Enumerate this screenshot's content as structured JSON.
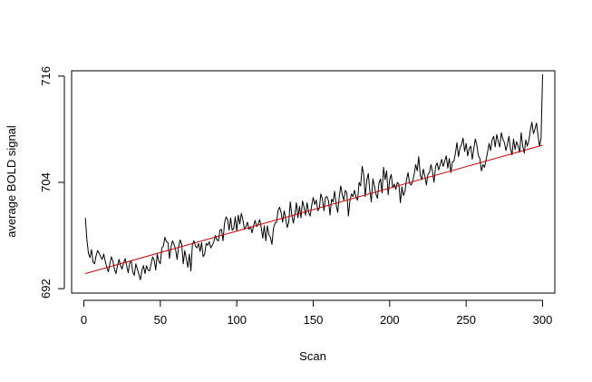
{
  "chart_data": {
    "type": "line",
    "title": "",
    "xlabel": "Scan",
    "ylabel": "average BOLD signal",
    "xlim": [
      -8,
      308
    ],
    "ylim": [
      691.5,
      716.6
    ],
    "xticks": [
      0,
      50,
      100,
      150,
      200,
      250,
      300
    ],
    "yticks": [
      692,
      704,
      716
    ],
    "grid": false,
    "legend": "none",
    "series": [
      {
        "color": "#000000",
        "style": "signal",
        "n_points": 300,
        "x_start": 1,
        "x_end": 300,
        "values": [
          700.0,
          697.5,
          696.0,
          695.5,
          696.4,
          695.0,
          694.8,
          695.7,
          696.3,
          696.0,
          695.6,
          695.3,
          695.9,
          695.1,
          694.4,
          693.9,
          694.8,
          695.6,
          695.1,
          694.2,
          693.7,
          694.6,
          695.3,
          694.6,
          694.2,
          694.9,
          695.4,
          694.6,
          693.8,
          694.9,
          695.1,
          693.9,
          693.5,
          694.8,
          694.2,
          693.6,
          693.0,
          694.1,
          694.6,
          693.7,
          694.6,
          694.1,
          694.0,
          694.8,
          695.6,
          695.2,
          694.1,
          695.9,
          695.1,
          694.8,
          696.6,
          696.8,
          697.8,
          697.3,
          697.2,
          695.4,
          696.7,
          697.4,
          697.0,
          696.4,
          695.3,
          696.8,
          697.5,
          697.0,
          694.8,
          696.3,
          695.4,
          694.4,
          695.9,
          694.0,
          697.0,
          697.4,
          696.8,
          696.6,
          697.1,
          696.2,
          697.2,
          695.6,
          695.9,
          697.1,
          696.9,
          697.3,
          696.6,
          696.9,
          697.3,
          698.0,
          697.5,
          697.4,
          698.6,
          698.7,
          697.4,
          699.4,
          700.1,
          699.8,
          698.6,
          700.0,
          698.6,
          698.8,
          700.1,
          698.5,
          700.3,
          699.3,
          700.5,
          699.8,
          698.7,
          699.0,
          699.5,
          698.7,
          699.0,
          698.3,
          699.1,
          699.7,
          699.0,
          699.3,
          699.8,
          698.9,
          697.7,
          699.1,
          697.4,
          699.1,
          698.1,
          697.8,
          697.0,
          698.8,
          699.4,
          699.5,
          700.8,
          701.2,
          700.6,
          699.5,
          700.8,
          699.9,
          698.9,
          699.5,
          701.8,
          700.3,
          699.4,
          700.4,
          701.7,
          700.0,
          701.3,
          700.0,
          701.9,
          701.2,
          700.3,
          701.7,
          700.6,
          700.2,
          701.4,
          702.3,
          701.5,
          702.0,
          700.8,
          701.1,
          702.7,
          702.1,
          700.8,
          702.3,
          702.4,
          701.9,
          700.3,
          702.1,
          701.8,
          703.0,
          701.5,
          700.6,
          702.3,
          703.6,
          702.6,
          702.0,
          703.1,
          702.8,
          700.2,
          701.9,
          702.7,
          702.4,
          703.1,
          702.3,
          702.0,
          704.0,
          703.6,
          705.8,
          704.9,
          702.4,
          704.2,
          705.0,
          703.1,
          701.8,
          704.4,
          703.6,
          702.7,
          702.2,
          703.9,
          704.4,
          702.8,
          705.7,
          704.3,
          705.3,
          702.6,
          704.3,
          704.9,
          703.4,
          703.8,
          703.2,
          704.0,
          703.8,
          701.7,
          703.5,
          702.5,
          703.0,
          704.3,
          705.1,
          703.9,
          703.7,
          704.1,
          704.9,
          706.0,
          705.3,
          706.9,
          704.8,
          704.3,
          705.5,
          704.7,
          703.7,
          704.9,
          705.1,
          706.0,
          705.2,
          704.0,
          705.8,
          706.2,
          705.4,
          706.0,
          706.6,
          705.8,
          706.4,
          707.0,
          705.6,
          706.7,
          705.1,
          706.3,
          706.4,
          707.3,
          708.5,
          706.9,
          707.9,
          708.3,
          709.0,
          707.5,
          708.4,
          707.0,
          707.8,
          708.1,
          706.6,
          707.8,
          708.9,
          708.2,
          707.0,
          706.7,
          705.3,
          706.0,
          705.7,
          706.5,
          707.4,
          708.4,
          707.6,
          708.8,
          709.2,
          708.0,
          709.4,
          708.6,
          708.0,
          709.6,
          708.9,
          708.5,
          707.6,
          708.3,
          709.2,
          707.8,
          707.1,
          708.9,
          707.7,
          708.6,
          708.1,
          707.4,
          709.6,
          708.1,
          707.3,
          708.8,
          708.1,
          708.7,
          709.9,
          710.8,
          709.5,
          710.0,
          710.7,
          709.3,
          708.1,
          709.0,
          716.2
        ]
      },
      {
        "color": "#cc0000",
        "style": "fit",
        "x": [
          1,
          300
        ],
        "values": [
          693.7,
          708.2
        ]
      }
    ]
  }
}
